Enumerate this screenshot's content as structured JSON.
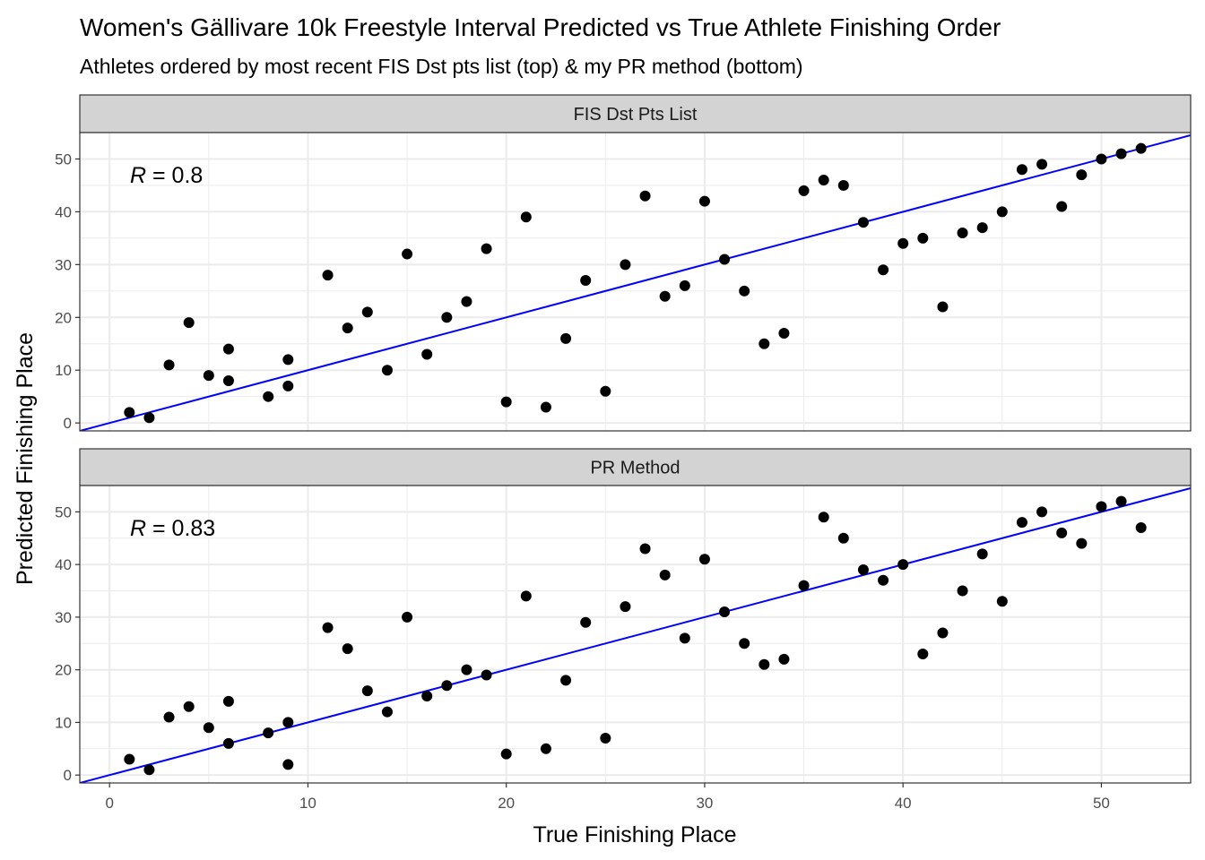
{
  "chart_data": {
    "type": "scatter",
    "title": "Women's Gällivare 10k Freestyle Interval Predicted vs True Athlete Finishing Order",
    "subtitle": "Athletes ordered by most recent FIS Dst pts list (top) & my PR method (bottom)",
    "xlabel": "True Finishing Place",
    "ylabel": "Predicted Finishing Place",
    "xlim": [
      -1.5,
      54.5
    ],
    "ylim": [
      -1.5,
      55
    ],
    "x_ticks": [
      "0",
      "10",
      "20",
      "30",
      "40",
      "50"
    ],
    "y_ticks": [
      "0",
      "10",
      "20",
      "30",
      "40",
      "50"
    ],
    "grid": true,
    "point_color": "#000000",
    "line_color": "#0000ff",
    "strip_color": "#d3d3d3",
    "panels": [
      {
        "strip_label": "FIS Dst Pts List",
        "r_label": "R",
        "r_value": " = 0.8",
        "line": {
          "intercept": 0,
          "slope": 1
        },
        "points": [
          [
            1,
            2
          ],
          [
            2,
            1
          ],
          [
            3,
            11
          ],
          [
            4,
            19
          ],
          [
            5,
            9
          ],
          [
            6,
            14
          ],
          [
            6,
            8
          ],
          [
            8,
            5
          ],
          [
            9,
            12
          ],
          [
            9,
            7
          ],
          [
            11,
            28
          ],
          [
            12,
            18
          ],
          [
            13,
            21
          ],
          [
            14,
            10
          ],
          [
            15,
            32
          ],
          [
            16,
            13
          ],
          [
            17,
            20
          ],
          [
            18,
            23
          ],
          [
            19,
            33
          ],
          [
            20,
            4
          ],
          [
            21,
            39
          ],
          [
            22,
            3
          ],
          [
            23,
            16
          ],
          [
            24,
            27
          ],
          [
            25,
            6
          ],
          [
            26,
            30
          ],
          [
            27,
            43
          ],
          [
            28,
            24
          ],
          [
            29,
            26
          ],
          [
            30,
            42
          ],
          [
            31,
            31
          ],
          [
            32,
            25
          ],
          [
            33,
            15
          ],
          [
            34,
            17
          ],
          [
            35,
            44
          ],
          [
            36,
            46
          ],
          [
            37,
            45
          ],
          [
            38,
            38
          ],
          [
            39,
            29
          ],
          [
            40,
            34
          ],
          [
            41,
            35
          ],
          [
            42,
            22
          ],
          [
            43,
            36
          ],
          [
            44,
            37
          ],
          [
            45,
            40
          ],
          [
            46,
            48
          ],
          [
            47,
            49
          ],
          [
            48,
            41
          ],
          [
            49,
            47
          ],
          [
            50,
            50
          ],
          [
            51,
            51
          ],
          [
            52,
            52
          ]
        ]
      },
      {
        "strip_label": "PR Method",
        "r_label": "R",
        "r_value": " = 0.83",
        "line": {
          "intercept": 0,
          "slope": 1
        },
        "points": [
          [
            1,
            3
          ],
          [
            2,
            1
          ],
          [
            3,
            11
          ],
          [
            4,
            13
          ],
          [
            5,
            9
          ],
          [
            6,
            14
          ],
          [
            6,
            6
          ],
          [
            8,
            8
          ],
          [
            9,
            10
          ],
          [
            9,
            2
          ],
          [
            11,
            28
          ],
          [
            12,
            24
          ],
          [
            13,
            16
          ],
          [
            14,
            12
          ],
          [
            15,
            30
          ],
          [
            16,
            15
          ],
          [
            17,
            17
          ],
          [
            18,
            20
          ],
          [
            19,
            19
          ],
          [
            20,
            4
          ],
          [
            21,
            34
          ],
          [
            22,
            5
          ],
          [
            23,
            18
          ],
          [
            24,
            29
          ],
          [
            25,
            7
          ],
          [
            26,
            32
          ],
          [
            27,
            43
          ],
          [
            28,
            38
          ],
          [
            29,
            26
          ],
          [
            30,
            41
          ],
          [
            31,
            31
          ],
          [
            32,
            25
          ],
          [
            33,
            21
          ],
          [
            34,
            22
          ],
          [
            35,
            36
          ],
          [
            36,
            49
          ],
          [
            37,
            45
          ],
          [
            38,
            39
          ],
          [
            39,
            37
          ],
          [
            40,
            40
          ],
          [
            41,
            23
          ],
          [
            42,
            27
          ],
          [
            43,
            35
          ],
          [
            44,
            42
          ],
          [
            45,
            33
          ],
          [
            46,
            48
          ],
          [
            47,
            50
          ],
          [
            48,
            46
          ],
          [
            49,
            44
          ],
          [
            50,
            51
          ],
          [
            51,
            52
          ],
          [
            52,
            47
          ]
        ]
      }
    ]
  }
}
